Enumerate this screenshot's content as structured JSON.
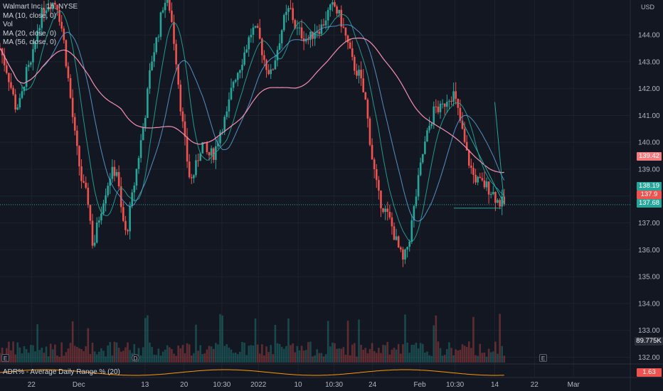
{
  "legend": {
    "symbol": "Walmart Inc., 1h, NYSE",
    "ma10": "MA (10, close, 0)",
    "vol": "Vol",
    "ma20": "MA (20, close, 0)",
    "ma56": "MA (56, close, 0)"
  },
  "currency": "USD",
  "indicator_label": "ADR% - Average Daily Range % (20)",
  "price_tags": {
    "upper": "139.42",
    "current_a": "138.19",
    "current_b": "137.9",
    "current_c": "137.68",
    "volume": "89.775K",
    "adr": "1.63"
  },
  "events": {
    "e1": "E",
    "e2": "D",
    "e3": "E"
  },
  "colors": {
    "background": "#131722",
    "up": "#26a69a",
    "down": "#ef5350",
    "ma10": "#26a69a",
    "ma20": "#5b9bd5",
    "ma56": "#f48fb1",
    "adr_line": "#ff9800",
    "projection": "#26a69a"
  },
  "chart_data": {
    "type": "candlestick",
    "title": "Walmart Inc., 1h, NYSE",
    "y_ticks": [
      "144.00",
      "143.00",
      "142.00",
      "141.00",
      "140.00",
      "139.00",
      "138.00",
      "137.00",
      "136.00",
      "135.00",
      "134.00",
      "133.00",
      "132.00"
    ],
    "y_tick_values": [
      144,
      143,
      142,
      141,
      140,
      139,
      138,
      137,
      136,
      135,
      134,
      133,
      132
    ],
    "ylim": [
      131.8,
      145.3
    ],
    "x_ticks": [
      {
        "label": "22",
        "t": 0.05
      },
      {
        "label": "Dec",
        "t": 0.125
      },
      {
        "label": "13",
        "t": 0.23
      },
      {
        "label": "20",
        "t": 0.292
      },
      {
        "label": "10:30",
        "t": 0.352
      },
      {
        "label": "2022",
        "t": 0.41
      },
      {
        "label": "10",
        "t": 0.473
      },
      {
        "label": "10:30",
        "t": 0.53
      },
      {
        "label": "24",
        "t": 0.591
      },
      {
        "label": "Feb",
        "t": 0.666
      },
      {
        "label": "10:30",
        "t": 0.722
      },
      {
        "label": "14",
        "t": 0.785
      },
      {
        "label": "22",
        "t": 0.848
      },
      {
        "label": "Mar",
        "t": 0.91
      }
    ],
    "price_path": [
      [
        0.0,
        143.5
      ],
      [
        0.012,
        142.6
      ],
      [
        0.025,
        141.3
      ],
      [
        0.033,
        141.5
      ],
      [
        0.04,
        142.5
      ],
      [
        0.05,
        142.9
      ],
      [
        0.06,
        144.3
      ],
      [
        0.07,
        145.0
      ],
      [
        0.078,
        145.2
      ],
      [
        0.09,
        145.2
      ],
      [
        0.1,
        144.0
      ],
      [
        0.11,
        142.0
      ],
      [
        0.12,
        140.0
      ],
      [
        0.13,
        138.5
      ],
      [
        0.14,
        137.8
      ],
      [
        0.148,
        136.0
      ],
      [
        0.155,
        137.0
      ],
      [
        0.165,
        138.0
      ],
      [
        0.175,
        138.8
      ],
      [
        0.185,
        139.0
      ],
      [
        0.192,
        137.5
      ],
      [
        0.2,
        136.5
      ],
      [
        0.21,
        138.0
      ],
      [
        0.22,
        139.5
      ],
      [
        0.23,
        141.0
      ],
      [
        0.24,
        143.0
      ],
      [
        0.252,
        144.2
      ],
      [
        0.26,
        145.3
      ],
      [
        0.27,
        145.0
      ],
      [
        0.28,
        143.0
      ],
      [
        0.288,
        141.0
      ],
      [
        0.296,
        139.5
      ],
      [
        0.302,
        138.5
      ],
      [
        0.31,
        139.0
      ],
      [
        0.32,
        140.0
      ],
      [
        0.33,
        139.5
      ],
      [
        0.34,
        139.6
      ],
      [
        0.35,
        140.5
      ],
      [
        0.36,
        141.0
      ],
      [
        0.37,
        142.3
      ],
      [
        0.38,
        142.8
      ],
      [
        0.39,
        143.5
      ],
      [
        0.4,
        144.2
      ],
      [
        0.41,
        144.0
      ],
      [
        0.42,
        143.0
      ],
      [
        0.43,
        142.5
      ],
      [
        0.44,
        143.5
      ],
      [
        0.45,
        144.5
      ],
      [
        0.46,
        145.0
      ],
      [
        0.47,
        144.2
      ],
      [
        0.48,
        144.0
      ],
      [
        0.49,
        143.8
      ],
      [
        0.5,
        144.2
      ],
      [
        0.51,
        144.3
      ],
      [
        0.52,
        144.8
      ],
      [
        0.53,
        145.1
      ],
      [
        0.54,
        144.6
      ],
      [
        0.55,
        143.8
      ],
      [
        0.56,
        142.9
      ],
      [
        0.57,
        142.5
      ],
      [
        0.58,
        141.5
      ],
      [
        0.59,
        139.5
      ],
      [
        0.6,
        138.0
      ],
      [
        0.61,
        137.5
      ],
      [
        0.62,
        137.0
      ],
      [
        0.63,
        136.2
      ],
      [
        0.64,
        135.5
      ],
      [
        0.65,
        136.5
      ],
      [
        0.66,
        138.0
      ],
      [
        0.67,
        139.5
      ],
      [
        0.68,
        140.5
      ],
      [
        0.69,
        141.3
      ],
      [
        0.7,
        141.2
      ],
      [
        0.71,
        141.7
      ],
      [
        0.72,
        141.8
      ],
      [
        0.73,
        140.8
      ],
      [
        0.74,
        139.6
      ],
      [
        0.75,
        138.8
      ],
      [
        0.76,
        138.5
      ],
      [
        0.77,
        138.4
      ],
      [
        0.78,
        138.2
      ],
      [
        0.79,
        137.8
      ],
      [
        0.8,
        137.7
      ]
    ],
    "volume_profile_note": "volume histogram at bottom of price pane",
    "adr_range": [
      1.5,
      1.9
    ]
  }
}
